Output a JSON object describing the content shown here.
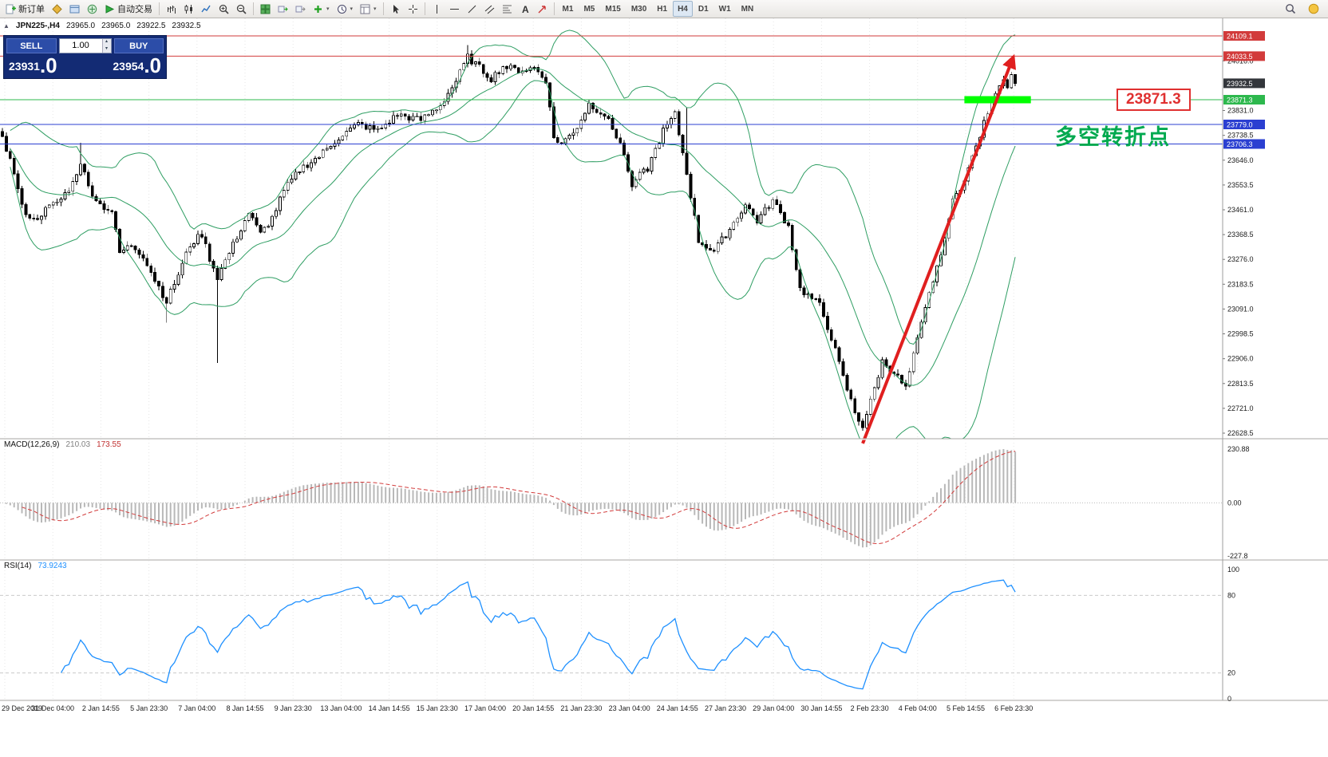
{
  "toolbar": {
    "new_order": "新订单",
    "autotrading": "自动交易",
    "timeframes": [
      "M1",
      "M5",
      "M15",
      "M30",
      "H1",
      "H4",
      "D1",
      "W1",
      "MN"
    ],
    "active_timeframe": "H4"
  },
  "chart": {
    "info": {
      "symbol": "JPN225-,H4",
      "open": "23965.0",
      "high": "23965.0",
      "low": "23922.5",
      "close": "23932.5"
    },
    "trade_panel": {
      "sell_label": "SELL",
      "buy_label": "BUY",
      "volume": "1.00",
      "sell_price_main": "23931",
      "sell_price_pips": ".0",
      "buy_price_main": "23954",
      "buy_price_pips": ".0"
    },
    "macd_label": {
      "name": "MACD(12,26,9)",
      "main": "210.03",
      "signal": "173.55"
    },
    "rsi_label": {
      "name": "RSI(14)",
      "value": "73.9243"
    },
    "annotations": {
      "level_callout": "23871.3",
      "note": "多空转折点"
    }
  },
  "chart_data": {
    "type": "candlestick",
    "symbol": "JPN225-",
    "timeframe": "H4",
    "ohlc_current": {
      "open": 23965.0,
      "high": 23965.0,
      "low": 23922.5,
      "close": 23932.5
    },
    "current_price": 23932.5,
    "current_price_label": "23932.5",
    "levels": [
      {
        "price": 24109.1,
        "color": "#d23b3b",
        "label": "24109.1"
      },
      {
        "price": 24033.5,
        "color": "#d23b3b",
        "label": "24033.5"
      },
      {
        "price": 23871.3,
        "color": "#2db84d",
        "label": "23871.3"
      },
      {
        "price": 23779.0,
        "color": "#2b3fd1",
        "label": "23779.0"
      },
      {
        "price": 23706.3,
        "color": "#2b3fd1",
        "label": "23706.3"
      }
    ],
    "y_axis": {
      "labels": [
        "24016.0",
        "23831.0",
        "23738.5",
        "23646.0",
        "23553.5",
        "23461.0",
        "23368.5",
        "23276.0",
        "23183.5",
        "23091.0",
        "22998.5",
        "22906.0",
        "22813.5",
        "22721.0",
        "22628.5"
      ]
    },
    "x_axis": {
      "labels": [
        "29 Dec 2019",
        "31 Dec 04:00",
        "2 Jan 14:55",
        "5 Jan 23:30",
        "7 Jan 04:00",
        "8 Jan 14:55",
        "9 Jan 23:30",
        "13 Jan 04:00",
        "14 Jan 14:55",
        "15 Jan 23:30",
        "17 Jan 04:00",
        "20 Jan 14:55",
        "21 Jan 23:30",
        "23 Jan 04:00",
        "24 Jan 14:55",
        "27 Jan 23:30",
        "29 Jan 04:00",
        "30 Jan 14:55",
        "2 Feb 23:30",
        "4 Feb 04:00",
        "5 Feb 14:55",
        "6 Feb 23:30"
      ]
    },
    "indicators": {
      "bollinger": {
        "color": "#2f9e63"
      },
      "macd": {
        "params": "12,26,9",
        "main": 210.03,
        "signal": 173.55,
        "axis": [
          "230.88",
          "0.00",
          "-227.8"
        ],
        "axis_values": [
          230.88,
          0,
          -227.8
        ]
      },
      "rsi": {
        "params": "14",
        "value": 73.9243,
        "axis": [
          "100",
          "80",
          "20",
          "0"
        ],
        "levels": [
          80,
          20
        ]
      }
    },
    "price_path": [
      [
        0,
        23740
      ],
      [
        1,
        23690
      ],
      [
        3,
        23600
      ],
      [
        5,
        23470
      ],
      [
        8,
        23420
      ],
      [
        11,
        23460
      ],
      [
        15,
        23500
      ],
      [
        18,
        23560
      ],
      [
        20,
        23640
      ],
      [
        22,
        23545
      ],
      [
        25,
        23480
      ],
      [
        28,
        23455
      ],
      [
        30,
        23300
      ],
      [
        33,
        23330
      ],
      [
        36,
        23290
      ],
      [
        39,
        23200
      ],
      [
        42,
        23120
      ],
      [
        45,
        23220
      ],
      [
        48,
        23330
      ],
      [
        51,
        23370
      ],
      [
        53,
        23280
      ],
      [
        55,
        23210
      ],
      [
        58,
        23300
      ],
      [
        61,
        23390
      ],
      [
        63,
        23450
      ],
      [
        66,
        23370
      ],
      [
        69,
        23430
      ],
      [
        72,
        23530
      ],
      [
        76,
        23610
      ],
      [
        81,
        23660
      ],
      [
        86,
        23730
      ],
      [
        91,
        23780
      ],
      [
        96,
        23755
      ],
      [
        101,
        23815
      ],
      [
        107,
        23795
      ],
      [
        112,
        23850
      ],
      [
        116,
        23940
      ],
      [
        119,
        24030
      ],
      [
        122,
        23990
      ],
      [
        125,
        23950
      ],
      [
        128,
        23995
      ],
      [
        132,
        23980
      ],
      [
        136,
        23990
      ],
      [
        139,
        23945
      ],
      [
        141,
        23730
      ],
      [
        143,
        23705
      ],
      [
        147,
        23770
      ],
      [
        150,
        23855
      ],
      [
        154,
        23815
      ],
      [
        158,
        23710
      ],
      [
        161,
        23560
      ],
      [
        165,
        23615
      ],
      [
        169,
        23755
      ],
      [
        172,
        23815
      ],
      [
        175,
        23600
      ],
      [
        178,
        23345
      ],
      [
        182,
        23305
      ],
      [
        186,
        23390
      ],
      [
        190,
        23480
      ],
      [
        193,
        23420
      ],
      [
        197,
        23495
      ],
      [
        201,
        23400
      ],
      [
        204,
        23165
      ],
      [
        209,
        23105
      ],
      [
        212,
        22985
      ],
      [
        215,
        22835
      ],
      [
        218,
        22705
      ],
      [
        220,
        22655
      ],
      [
        222,
        22745
      ],
      [
        225,
        22895
      ],
      [
        228,
        22855
      ],
      [
        231,
        22795
      ],
      [
        234,
        22975
      ],
      [
        237,
        23145
      ],
      [
        240,
        23305
      ],
      [
        243,
        23490
      ],
      [
        245,
        23545
      ],
      [
        247,
        23615
      ],
      [
        249,
        23695
      ],
      [
        252,
        23825
      ],
      [
        254,
        23905
      ],
      [
        256,
        23955
      ],
      [
        257,
        23915
      ],
      [
        258,
        23965
      ],
      [
        259,
        23932.5
      ]
    ],
    "wicks": [
      {
        "bar": 20,
        "high": 23710
      },
      {
        "bar": 42,
        "low": 23040
      },
      {
        "bar": 55,
        "low": 22890
      },
      {
        "bar": 119,
        "high": 24075
      },
      {
        "bar": 120,
        "high": 24055
      },
      {
        "bar": 175,
        "high": 23840
      }
    ],
    "trend_arrow": {
      "from_bar": 220,
      "from_price": 22590,
      "to_bar": 258.5,
      "to_price": 24030,
      "color": "#e01f1f"
    },
    "highlight_segment": {
      "price": 23871.3,
      "from_bar": 246,
      "to_bar": 263,
      "color": "#00ff00"
    }
  }
}
